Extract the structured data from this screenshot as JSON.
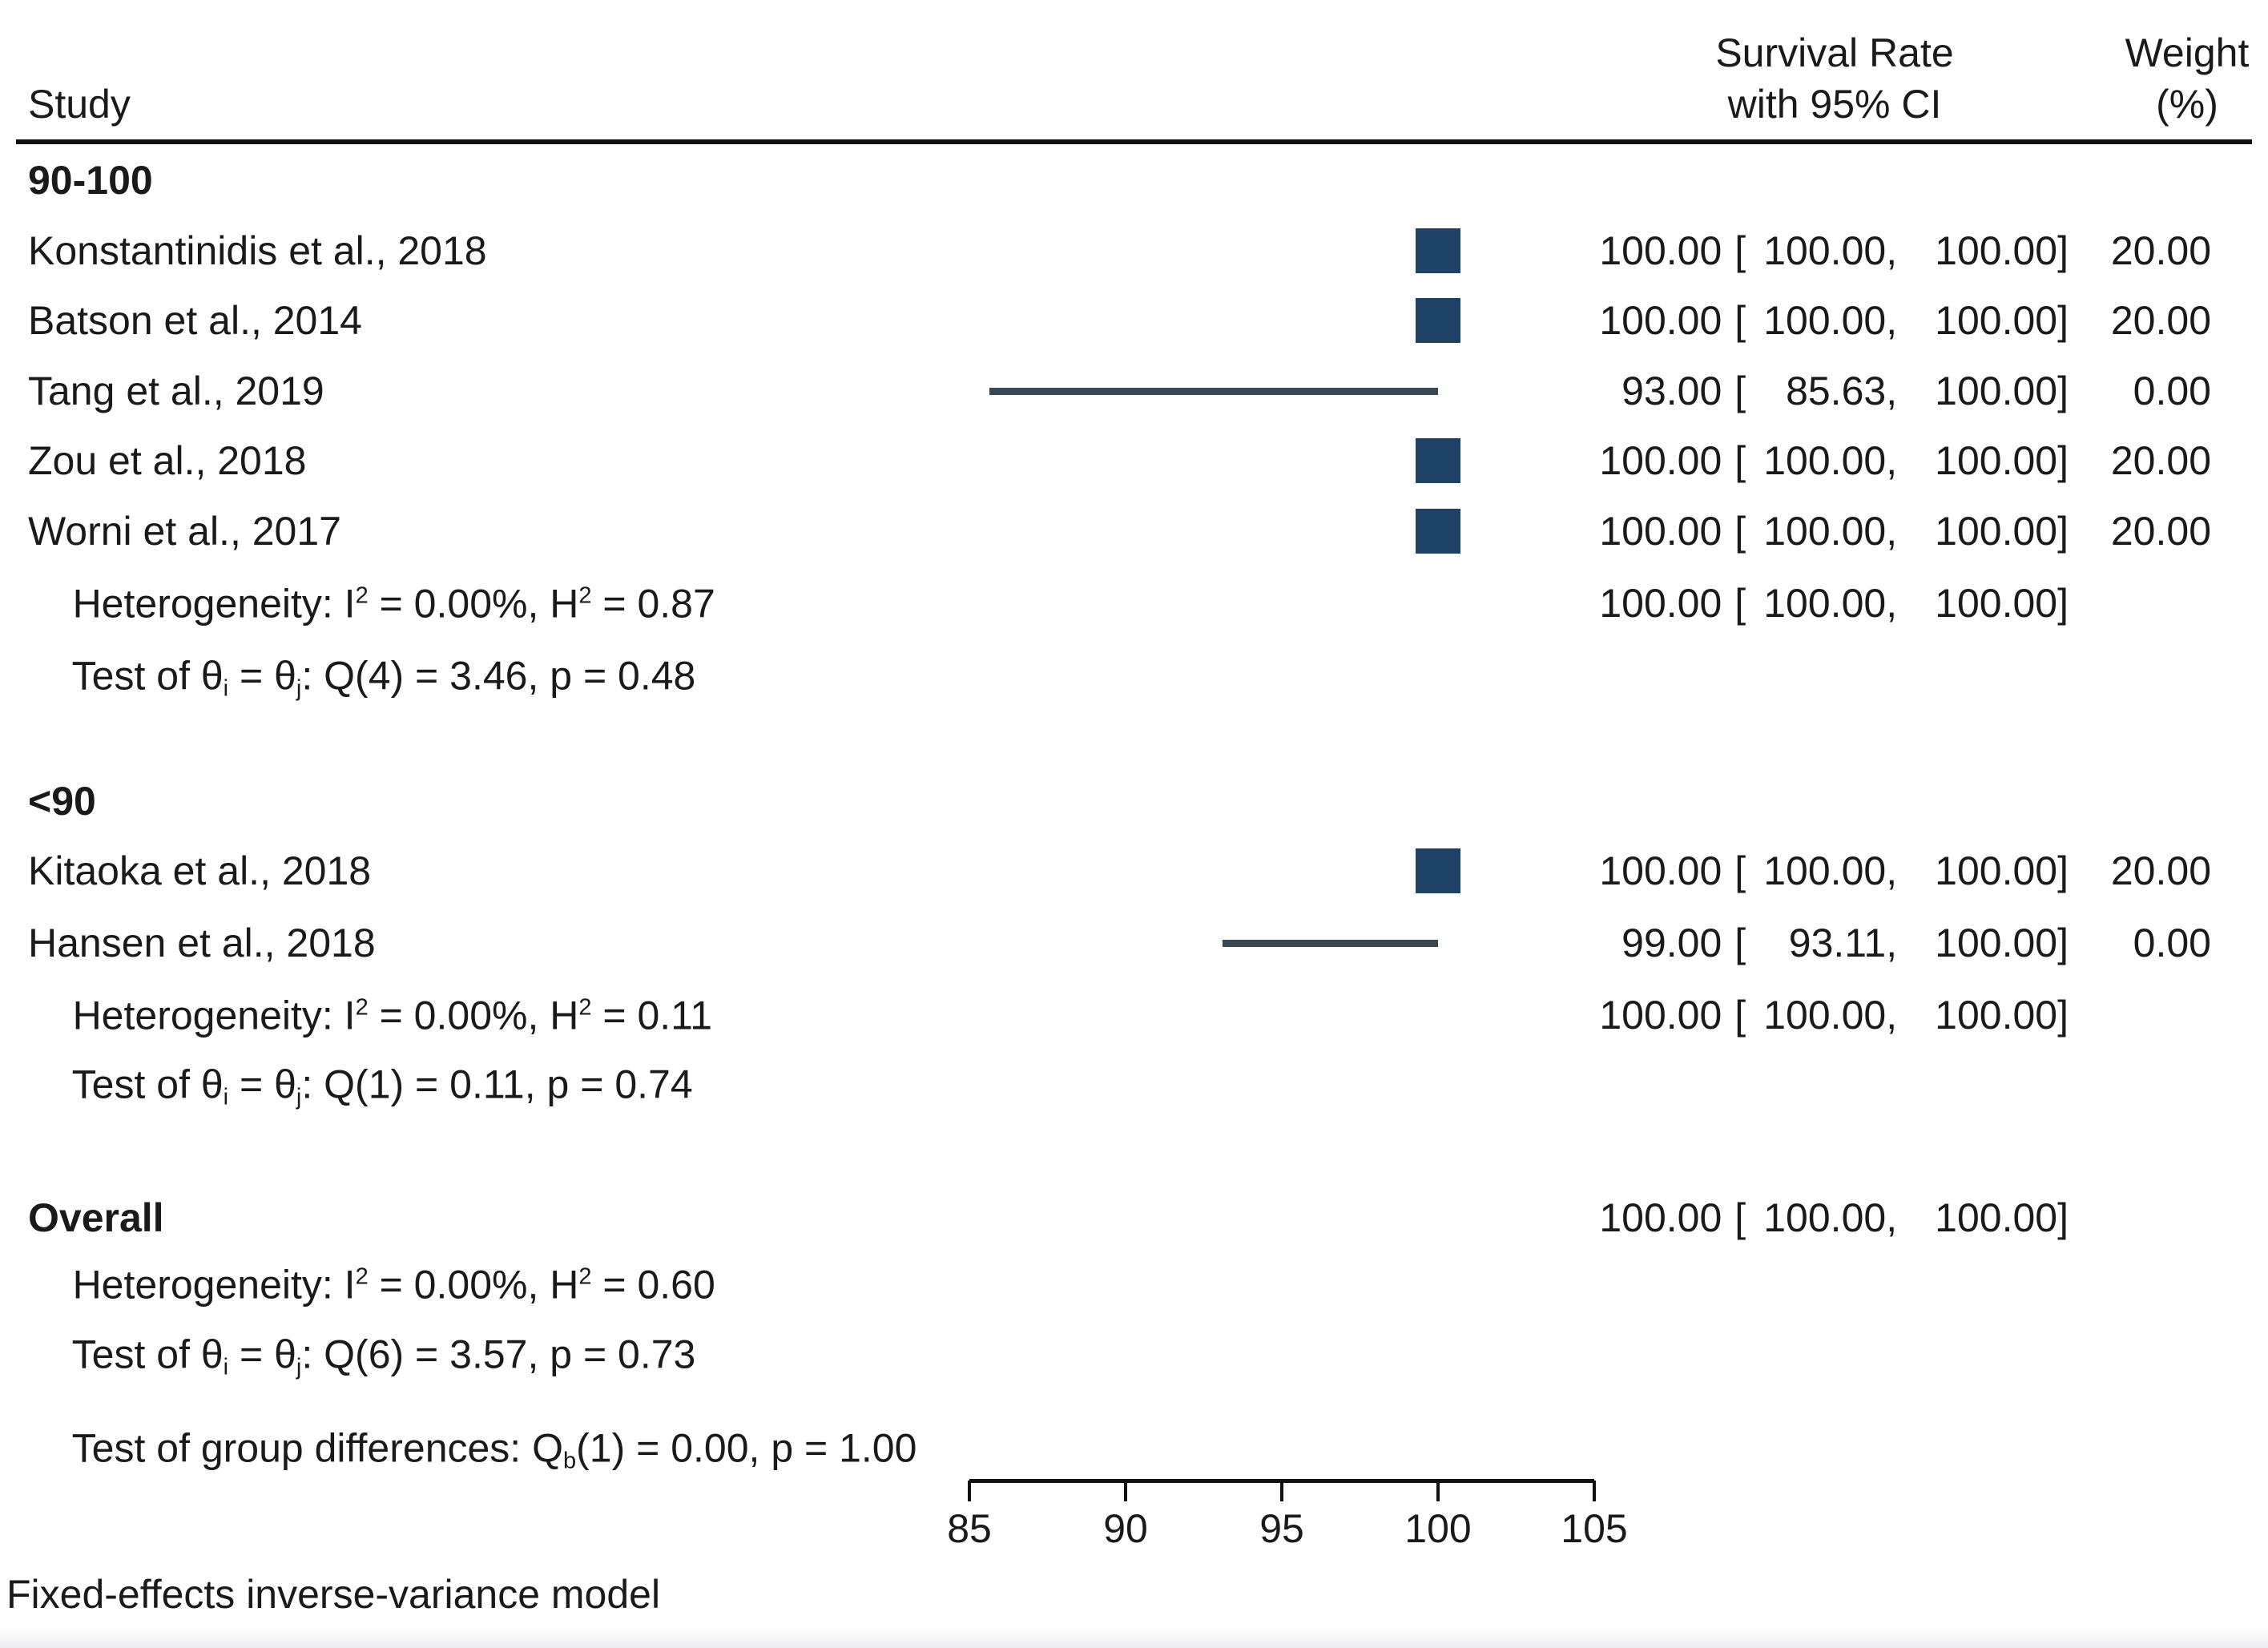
{
  "header": {
    "study_col": "Study",
    "effect_col_line1": "Survival Rate",
    "effect_col_line2": "with 95% CI",
    "weight_col_line1": "Weight",
    "weight_col_line2": "(%)"
  },
  "footer_note": "Fixed-effects inverse-variance model",
  "colors": {
    "marker": "#1e4265",
    "ci_line": "#3a4750",
    "text": "#1a1a1a",
    "rule": "#111111"
  },
  "fmt": {
    "open": "[",
    "comma": ",",
    "close": "]"
  },
  "chart_data": {
    "type": "forest",
    "effect_label": "Survival Rate with 95% CI",
    "axis": {
      "min": 85,
      "max": 105,
      "ticks": [
        "85",
        "90",
        "95",
        "100",
        "105"
      ]
    },
    "legend_position": "none",
    "grid": false,
    "groups": [
      {
        "label": "90-100",
        "studies": [
          {
            "label": "Konstantinidis et al., 2018",
            "est": "100.00",
            "lo": "100.00",
            "hi": "100.00",
            "weight": "20.00"
          },
          {
            "label": "Batson et al., 2014",
            "est": "100.00",
            "lo": "100.00",
            "hi": "100.00",
            "weight": "20.00"
          },
          {
            "label": "Tang et al., 2019",
            "est": "93.00",
            "lo": "85.63",
            "hi": "100.00",
            "weight": "0.00"
          },
          {
            "label": "Zou et al., 2018",
            "est": "100.00",
            "lo": "100.00",
            "hi": "100.00",
            "weight": "20.00"
          },
          {
            "label": "Worni et al., 2017",
            "est": "100.00",
            "lo": "100.00",
            "hi": "100.00",
            "weight": "20.00"
          }
        ],
        "summary": {
          "est": "100.00",
          "lo": "100.00",
          "hi": "100.00"
        },
        "heterogeneity": {
          "pre": "Heterogeneity: I",
          "sup1": "2",
          "mid": " = 0.00%, H",
          "sup2": "2",
          "post": " = 0.87"
        },
        "test": {
          "pre": "Test of θ",
          "sub1": "i",
          "mid": " = θ",
          "sub2": "j",
          "post": ": Q(4) = 3.46, p = 0.48"
        }
      },
      {
        "label": "<90",
        "studies": [
          {
            "label": "Kitaoka et al., 2018",
            "est": "100.00",
            "lo": "100.00",
            "hi": "100.00",
            "weight": "20.00"
          },
          {
            "label": "Hansen et al., 2018",
            "est": "99.00",
            "lo": "93.11",
            "hi": "100.00",
            "weight": "0.00"
          }
        ],
        "summary": {
          "est": "100.00",
          "lo": "100.00",
          "hi": "100.00"
        },
        "heterogeneity": {
          "pre": "Heterogeneity: I",
          "sup1": "2",
          "mid": " = 0.00%, H",
          "sup2": "2",
          "post": " = 0.11"
        },
        "test": {
          "pre": "Test of θ",
          "sub1": "i",
          "mid": " = θ",
          "sub2": "j",
          "post": ": Q(1) = 0.11, p = 0.74"
        }
      }
    ],
    "overall": {
      "label": "Overall",
      "summary": {
        "est": "100.00",
        "lo": "100.00",
        "hi": "100.00"
      },
      "heterogeneity": {
        "pre": "Heterogeneity: I",
        "sup1": "2",
        "mid": " = 0.00%, H",
        "sup2": "2",
        "post": " = 0.60"
      },
      "test": {
        "pre": "Test of θ",
        "sub1": "i",
        "mid": " = θ",
        "sub2": "j",
        "post": ": Q(6) = 3.57, p = 0.73"
      }
    },
    "group_difference": {
      "pre": "Test of group differences: Q",
      "sub1": "b",
      "post": "(1) = 0.00, p = 1.00"
    }
  }
}
